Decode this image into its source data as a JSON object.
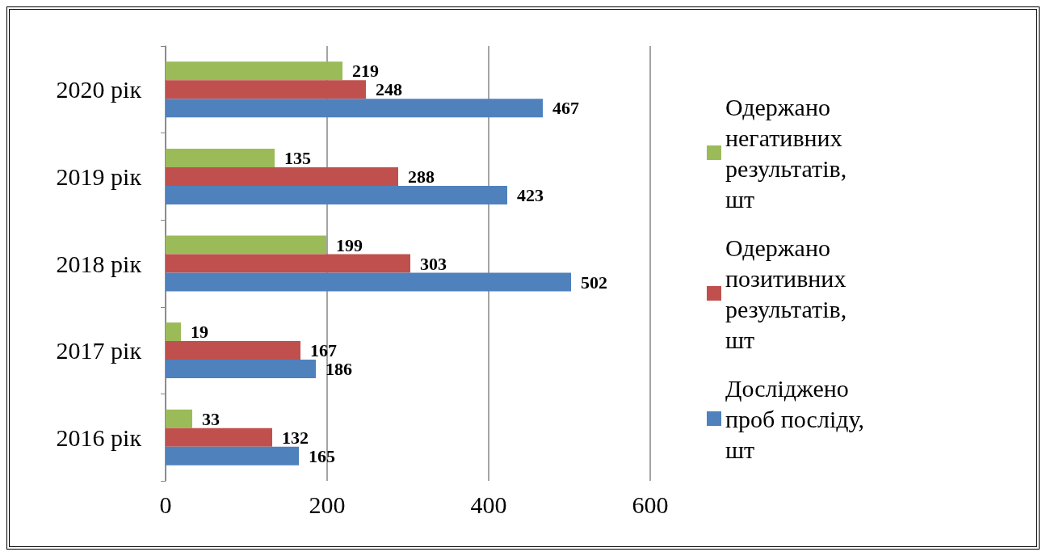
{
  "chart_data": {
    "type": "bar",
    "orientation": "horizontal",
    "categories": [
      "2020 рік",
      "2019 рік",
      "2018 рік",
      "2017 рік",
      "2016 рік"
    ],
    "series": [
      {
        "name": "Одержано негативних результатів, шт",
        "color": "#9bbb59",
        "values": [
          219,
          135,
          199,
          19,
          33
        ]
      },
      {
        "name": "Одержано позитивних результатів, шт",
        "color": "#c0504d",
        "values": [
          248,
          288,
          303,
          167,
          132
        ]
      },
      {
        "name": "Досліджено проб посліду, шт",
        "color": "#4f81bd",
        "values": [
          467,
          423,
          502,
          186,
          165
        ]
      }
    ],
    "xlim": [
      0,
      600
    ],
    "xticks": [
      0,
      200,
      400,
      600
    ],
    "grid": "x",
    "legend": "right",
    "data_labels": true
  }
}
